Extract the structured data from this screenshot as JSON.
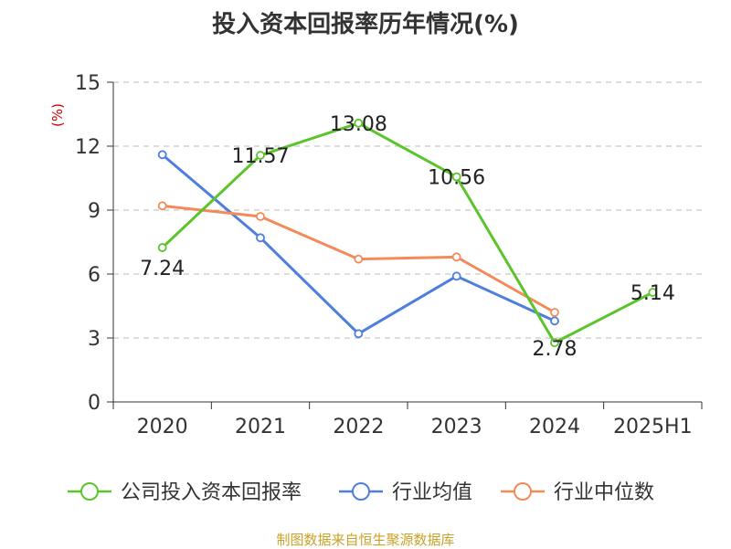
{
  "chart_data": {
    "type": "line",
    "title": "投入资本回报率历年情况(%)",
    "y_unit": "(%)",
    "categories": [
      "2020",
      "2021",
      "2022",
      "2023",
      "2024",
      "2025H1"
    ],
    "ylim": [
      0,
      15
    ],
    "yticks": [
      0,
      3,
      6,
      9,
      12,
      15
    ],
    "grid": true,
    "legend_position": "bottom",
    "series": [
      {
        "name": "公司投入资本回报率",
        "color": "#5cc42b",
        "values": [
          7.24,
          11.57,
          13.08,
          10.56,
          2.78,
          5.14
        ],
        "labels": [
          "7.24",
          "11.57",
          "13.08",
          "10.56",
          "2.78",
          "5.14"
        ]
      },
      {
        "name": "行业均值",
        "color": "#4f7fdc",
        "values": [
          11.6,
          7.7,
          3.2,
          5.9,
          3.8,
          null
        ]
      },
      {
        "name": "行业中位数",
        "color": "#f48a5a",
        "values": [
          9.2,
          8.7,
          6.7,
          6.8,
          4.2,
          null
        ]
      }
    ]
  },
  "footer": {
    "source": "制图数据来自恒生聚源数据库"
  },
  "colors": {
    "unit": "#cc0000",
    "grid": "#bbbbbb",
    "axis": "#333333"
  }
}
